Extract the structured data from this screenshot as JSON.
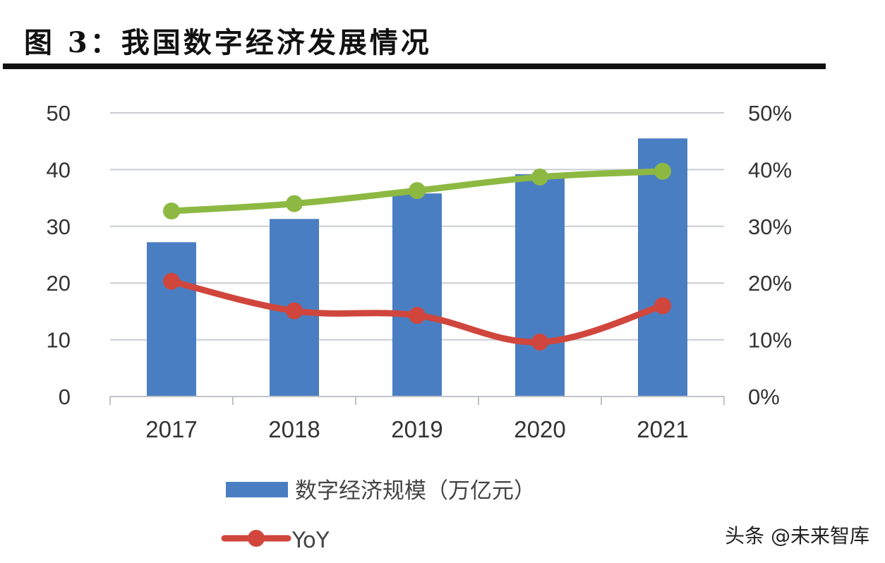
{
  "header": {
    "title": "图 3：我国数字经济发展情况"
  },
  "watermark": "头条 @未来智库",
  "chart_data": {
    "type": "bar",
    "title": "图 3：我国数字经济发展情况",
    "categories": [
      "2017",
      "2018",
      "2019",
      "2020",
      "2021"
    ],
    "series": [
      {
        "name": "数字经济规模（万亿元）",
        "type": "bar",
        "axis": "left",
        "color": "#4A7EC2",
        "values": [
          27.2,
          31.3,
          35.8,
          39.2,
          45.5
        ]
      },
      {
        "name": "YoY",
        "type": "line",
        "axis": "right",
        "color": "#D0463C",
        "unit": "%",
        "values": [
          20.3,
          15.1,
          14.3,
          9.6,
          16.0
        ]
      },
      {
        "name": "",
        "type": "line",
        "axis": "right",
        "color": "#8DB943",
        "unit": "%",
        "values": [
          32.7,
          34.0,
          36.3,
          38.7,
          39.7
        ]
      }
    ],
    "left_axis": {
      "label": "",
      "ylim": [
        0,
        50
      ],
      "ticks": [
        "0",
        "10",
        "20",
        "30",
        "40",
        "50"
      ]
    },
    "right_axis": {
      "label": "",
      "ylim": [
        0,
        50
      ],
      "ticks": [
        "0%",
        "10%",
        "20%",
        "30%",
        "40%",
        "50%"
      ]
    },
    "xlabel": "",
    "grid": true,
    "legend": {
      "placement": "bottom-left",
      "entries": [
        {
          "label": "数字经济规模（万亿元）",
          "symbol": "bar"
        },
        {
          "label": "YoY",
          "symbol": "line-marker"
        }
      ]
    }
  }
}
